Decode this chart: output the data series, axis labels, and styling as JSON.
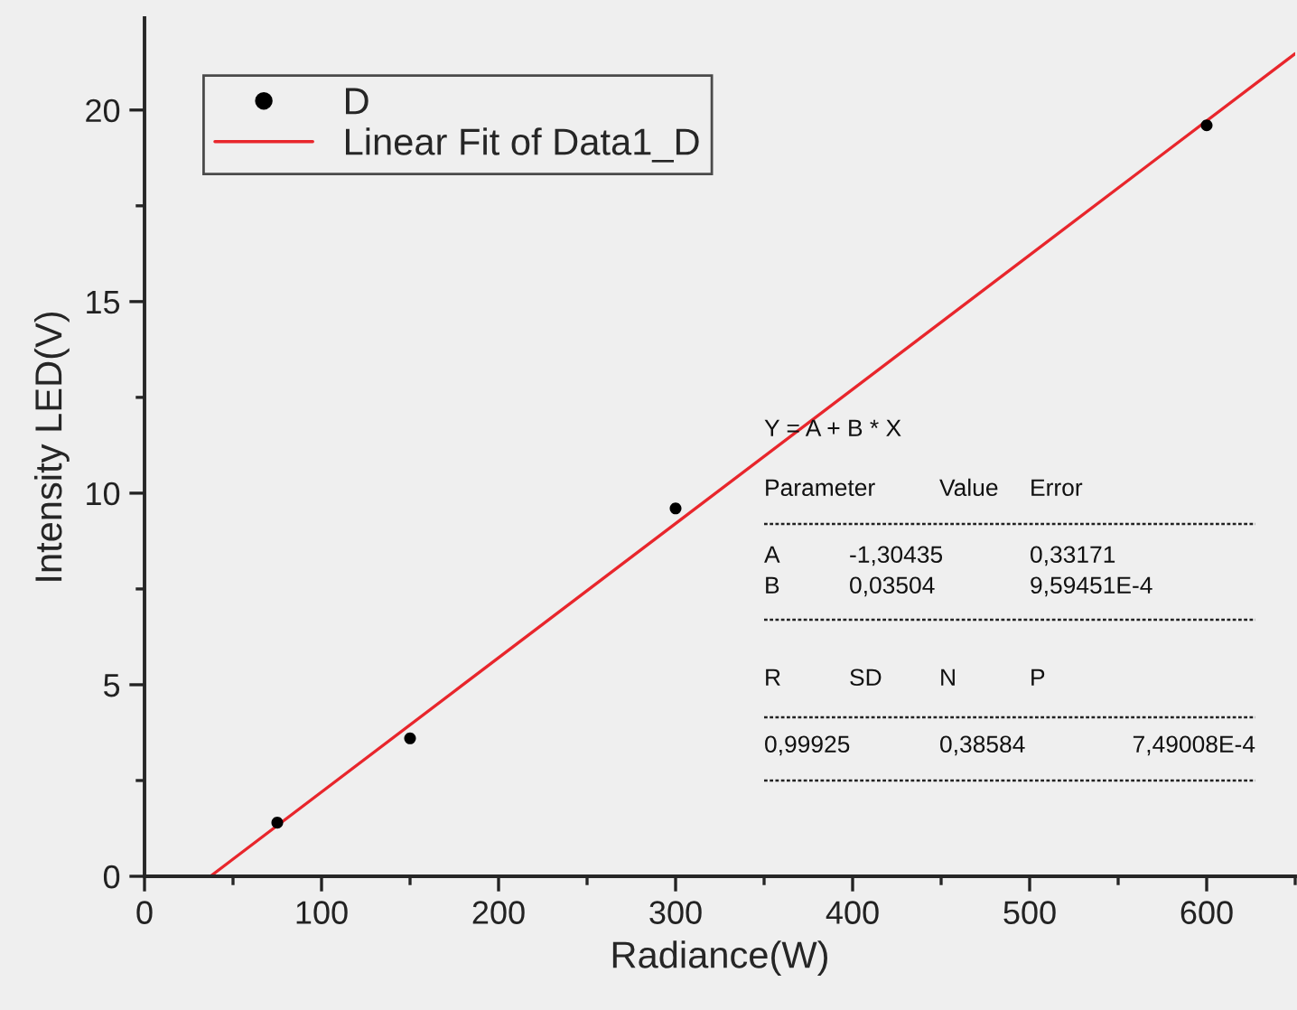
{
  "chart_data": {
    "type": "scatter",
    "xlabel": "Radiance(W)",
    "ylabel": "Intensity LED(V)",
    "series": [
      {
        "name": "D",
        "color": "#000000",
        "marker": "circle",
        "x": [
          75,
          150,
          300,
          600
        ],
        "values": [
          1.4,
          3.6,
          9.6,
          19.6
        ]
      },
      {
        "name": "Linear Fit of Data1_D",
        "type": "line",
        "color": "#e8262c",
        "marker": "none",
        "line_style": "solid",
        "x": [
          37.2,
          650
        ],
        "values": [
          0,
          21.47
        ]
      }
    ],
    "xlim": [
      0,
      650
    ],
    "ylim": [
      0,
      22.4
    ],
    "xticks": [
      0,
      100,
      200,
      300,
      400,
      500,
      600
    ],
    "yticks": [
      0,
      5,
      10,
      15,
      20
    ],
    "grid": false,
    "legend": "top left",
    "annotations": [
      "Y = A + B * X",
      "Parameter",
      "Value",
      "Error",
      "A",
      "-1,30435",
      "0,33171",
      "B",
      "0,03504",
      "9,59451E-4",
      "R",
      "SD",
      "N",
      "P",
      "0,99925",
      "0,38584",
      "7,49008E-4"
    ]
  }
}
